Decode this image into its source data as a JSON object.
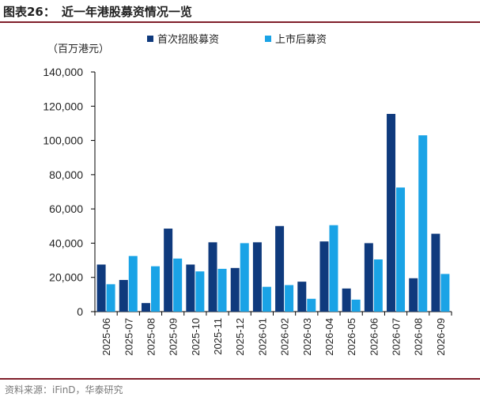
{
  "header": {
    "figure_label": "图表26：",
    "title": "近一年港股募资情况一览"
  },
  "footer": {
    "source": "资料来源：iFinD，华泰研究"
  },
  "colors": {
    "ipo": "#0f3a7d",
    "followon": "#1aa3e6",
    "rule": "#7f1f2a",
    "axis": "#000000"
  },
  "chart_data": {
    "type": "bar",
    "unit_label": "（百万港元）",
    "categories": [
      "2025-06",
      "2025-07",
      "2025-08",
      "2025-09",
      "2025-10",
      "2025-11",
      "2025-12",
      "2026-01",
      "2026-02",
      "2026-03",
      "2026-04",
      "2026-05",
      "2026-06",
      "2026-07",
      "2026-08",
      "2026-09"
    ],
    "series": [
      {
        "name": "首次招股募资",
        "values": [
          27500,
          18500,
          5000,
          48500,
          27500,
          40500,
          25500,
          40500,
          50000,
          17500,
          41000,
          13500,
          40000,
          115500,
          19500,
          45500
        ]
      },
      {
        "name": "上市后募资",
        "values": [
          16000,
          32500,
          26500,
          31000,
          23500,
          25000,
          40000,
          14500,
          15500,
          7500,
          50500,
          7000,
          30500,
          72500,
          103000,
          22000
        ]
      }
    ],
    "ylim": [
      0,
      140000
    ],
    "yticks": [
      0,
      20000,
      40000,
      60000,
      80000,
      100000,
      120000,
      140000
    ],
    "ytick_labels": [
      "0",
      "20,000",
      "40,000",
      "60,000",
      "80,000",
      "100,000",
      "120,000",
      "140,000"
    ],
    "legend_position": "top-right",
    "grid": false
  }
}
